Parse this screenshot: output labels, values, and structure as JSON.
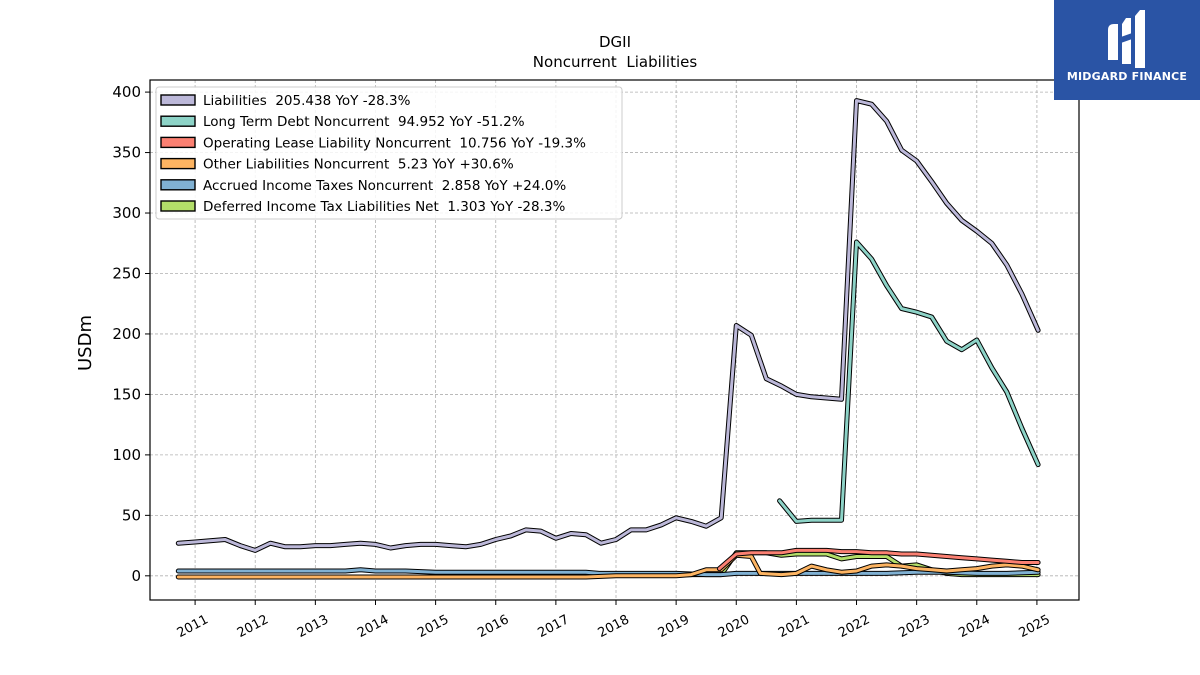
{
  "brand": {
    "name": "MIDGARD FINANCE",
    "color": "#2a54a5"
  },
  "chart_data": {
    "type": "line",
    "title": "DGII",
    "subtitle": "Noncurrent  Liabilities",
    "ylabel": "USDm",
    "xlabel": "",
    "ylim": [
      -20,
      410
    ],
    "xlim": [
      2010.25,
      2025.7
    ],
    "yticks": [
      0,
      50,
      100,
      150,
      200,
      250,
      300,
      350,
      400
    ],
    "xticks": [
      2011,
      2012,
      2013,
      2014,
      2015,
      2016,
      2017,
      2018,
      2019,
      2020,
      2021,
      2022,
      2023,
      2024,
      2025
    ],
    "grid": true,
    "legend_position": "top-left",
    "series": [
      {
        "name": "Liabilities  205.438 YoY -28.3%",
        "color": "#bcb8d9",
        "points": [
          [
            2010.72,
            27
          ],
          [
            2011,
            28
          ],
          [
            2011.25,
            29
          ],
          [
            2011.5,
            30
          ],
          [
            2011.75,
            25
          ],
          [
            2012,
            21
          ],
          [
            2012.25,
            27
          ],
          [
            2012.5,
            24
          ],
          [
            2012.75,
            24
          ],
          [
            2013,
            25
          ],
          [
            2013.25,
            25
          ],
          [
            2013.5,
            26
          ],
          [
            2013.75,
            27
          ],
          [
            2014,
            26
          ],
          [
            2014.25,
            23
          ],
          [
            2014.5,
            25
          ],
          [
            2014.75,
            26
          ],
          [
            2015,
            26
          ],
          [
            2015.25,
            25
          ],
          [
            2015.5,
            24
          ],
          [
            2015.75,
            26
          ],
          [
            2016,
            30
          ],
          [
            2016.25,
            33
          ],
          [
            2016.5,
            38
          ],
          [
            2016.75,
            37
          ],
          [
            2017,
            31
          ],
          [
            2017.25,
            35
          ],
          [
            2017.5,
            34
          ],
          [
            2017.75,
            27
          ],
          [
            2018,
            30
          ],
          [
            2018.25,
            38
          ],
          [
            2018.5,
            38
          ],
          [
            2018.75,
            42
          ],
          [
            2019,
            48
          ],
          [
            2019.25,
            45
          ],
          [
            2019.5,
            41
          ],
          [
            2019.75,
            48
          ],
          [
            2020,
            207
          ],
          [
            2020.25,
            199
          ],
          [
            2020.5,
            163
          ],
          [
            2020.75,
            157
          ],
          [
            2021,
            150
          ],
          [
            2021.25,
            148
          ],
          [
            2021.5,
            147
          ],
          [
            2021.75,
            146
          ],
          [
            2022,
            393
          ],
          [
            2022.25,
            390
          ],
          [
            2022.5,
            376
          ],
          [
            2022.75,
            352
          ],
          [
            2023,
            343
          ],
          [
            2023.25,
            326
          ],
          [
            2023.5,
            308
          ],
          [
            2023.75,
            294
          ],
          [
            2024,
            285
          ],
          [
            2024.25,
            275
          ],
          [
            2024.5,
            257
          ],
          [
            2024.75,
            233
          ],
          [
            2025.02,
            203
          ]
        ]
      },
      {
        "name": "Long Term Debt Noncurrent  94.952 YoY -51.2%",
        "color": "#8dd3c7",
        "points": [
          [
            2020.72,
            62
          ],
          [
            2021,
            45
          ],
          [
            2021.25,
            46
          ],
          [
            2021.5,
            46
          ],
          [
            2021.75,
            46
          ],
          [
            2022,
            276
          ],
          [
            2022.25,
            262
          ],
          [
            2022.5,
            240
          ],
          [
            2022.75,
            221
          ],
          [
            2023,
            218
          ],
          [
            2023.25,
            214
          ],
          [
            2023.5,
            194
          ],
          [
            2023.75,
            187
          ],
          [
            2024,
            195
          ],
          [
            2024.25,
            172
          ],
          [
            2024.5,
            152
          ],
          [
            2024.75,
            122
          ],
          [
            2025.02,
            92
          ]
        ]
      },
      {
        "name": "Operating Lease Liability Noncurrent  10.756 YoY -19.3%",
        "color": "#fb8072",
        "points": [
          [
            2019.72,
            6
          ],
          [
            2020,
            18
          ],
          [
            2020.25,
            19
          ],
          [
            2020.5,
            19
          ],
          [
            2020.75,
            19
          ],
          [
            2021,
            21
          ],
          [
            2021.25,
            21
          ],
          [
            2021.5,
            21
          ],
          [
            2021.75,
            20
          ],
          [
            2022,
            20
          ],
          [
            2022.25,
            19
          ],
          [
            2022.5,
            19
          ],
          [
            2022.75,
            18
          ],
          [
            2023,
            18
          ],
          [
            2023.25,
            17
          ],
          [
            2023.5,
            16
          ],
          [
            2023.75,
            15
          ],
          [
            2024,
            14
          ],
          [
            2024.25,
            13
          ],
          [
            2024.5,
            12
          ],
          [
            2024.75,
            11
          ],
          [
            2025.02,
            11
          ]
        ]
      },
      {
        "name": "Other Liabilities Noncurrent  5.23 YoY +30.6%",
        "color": "#fdb462",
        "points": [
          [
            2010.72,
            -1
          ],
          [
            2011,
            -1
          ],
          [
            2011.5,
            -1
          ],
          [
            2012,
            -1
          ],
          [
            2012.5,
            -1
          ],
          [
            2013,
            -1
          ],
          [
            2013.5,
            -1
          ],
          [
            2014,
            -1
          ],
          [
            2014.5,
            -1
          ],
          [
            2015,
            -1
          ],
          [
            2015.5,
            -1
          ],
          [
            2016,
            -1
          ],
          [
            2016.5,
            -1
          ],
          [
            2017,
            -1
          ],
          [
            2017.5,
            -1
          ],
          [
            2018,
            0
          ],
          [
            2018.5,
            0
          ],
          [
            2019,
            0
          ],
          [
            2019.25,
            1
          ],
          [
            2019.5,
            5
          ],
          [
            2019.75,
            5
          ],
          [
            2020,
            17
          ],
          [
            2020.25,
            16
          ],
          [
            2020.4,
            2
          ],
          [
            2020.75,
            1
          ],
          [
            2021,
            2
          ],
          [
            2021.25,
            8
          ],
          [
            2021.5,
            5
          ],
          [
            2021.75,
            3
          ],
          [
            2022,
            4
          ],
          [
            2022.25,
            8
          ],
          [
            2022.5,
            9
          ],
          [
            2022.75,
            8
          ],
          [
            2023,
            6
          ],
          [
            2023.25,
            5
          ],
          [
            2023.5,
            4
          ],
          [
            2023.75,
            5
          ],
          [
            2024,
            6
          ],
          [
            2024.25,
            8
          ],
          [
            2024.5,
            9
          ],
          [
            2024.75,
            8
          ],
          [
            2025.02,
            5
          ]
        ]
      },
      {
        "name": "Accrued Income Taxes Noncurrent  2.858 YoY +24.0%",
        "color": "#80b1d3",
        "points": [
          [
            2010.72,
            4
          ],
          [
            2011,
            4
          ],
          [
            2011.5,
            4
          ],
          [
            2012,
            4
          ],
          [
            2012.5,
            4
          ],
          [
            2013,
            4
          ],
          [
            2013.5,
            4
          ],
          [
            2013.75,
            5
          ],
          [
            2014,
            4
          ],
          [
            2014.5,
            4
          ],
          [
            2015,
            3
          ],
          [
            2015.5,
            3
          ],
          [
            2016,
            3
          ],
          [
            2016.5,
            3
          ],
          [
            2017,
            3
          ],
          [
            2017.5,
            3
          ],
          [
            2017.72,
            2
          ],
          [
            2018,
            2
          ],
          [
            2018.5,
            2
          ],
          [
            2019,
            2
          ],
          [
            2019.5,
            1
          ],
          [
            2019.75,
            1
          ],
          [
            2020,
            2
          ],
          [
            2020.5,
            2
          ],
          [
            2021,
            2
          ],
          [
            2021.5,
            2
          ],
          [
            2022,
            2
          ],
          [
            2022.5,
            2
          ],
          [
            2023,
            3
          ],
          [
            2023.5,
            3
          ],
          [
            2024,
            2
          ],
          [
            2024.5,
            2
          ],
          [
            2025.02,
            3
          ]
        ]
      },
      {
        "name": "Deferred Income Tax Liabilities Net  1.303 YoY -28.3%",
        "color": "#b3de69",
        "points": [
          [
            2017.72,
            1
          ],
          [
            2018,
            1
          ],
          [
            2018.5,
            1
          ],
          [
            2019,
            1
          ],
          [
            2019.5,
            1
          ],
          [
            2019.75,
            1
          ],
          [
            2020,
            19
          ],
          [
            2020.25,
            19
          ],
          [
            2020.5,
            19
          ],
          [
            2020.75,
            17
          ],
          [
            2021,
            18
          ],
          [
            2021.25,
            18
          ],
          [
            2021.5,
            18
          ],
          [
            2021.75,
            14
          ],
          [
            2022,
            16
          ],
          [
            2022.25,
            16
          ],
          [
            2022.5,
            16
          ],
          [
            2022.75,
            8
          ],
          [
            2023,
            9
          ],
          [
            2023.25,
            5
          ],
          [
            2023.5,
            2
          ],
          [
            2023.75,
            1
          ],
          [
            2024,
            1
          ],
          [
            2024.5,
            1
          ],
          [
            2025.02,
            1
          ]
        ]
      }
    ]
  }
}
